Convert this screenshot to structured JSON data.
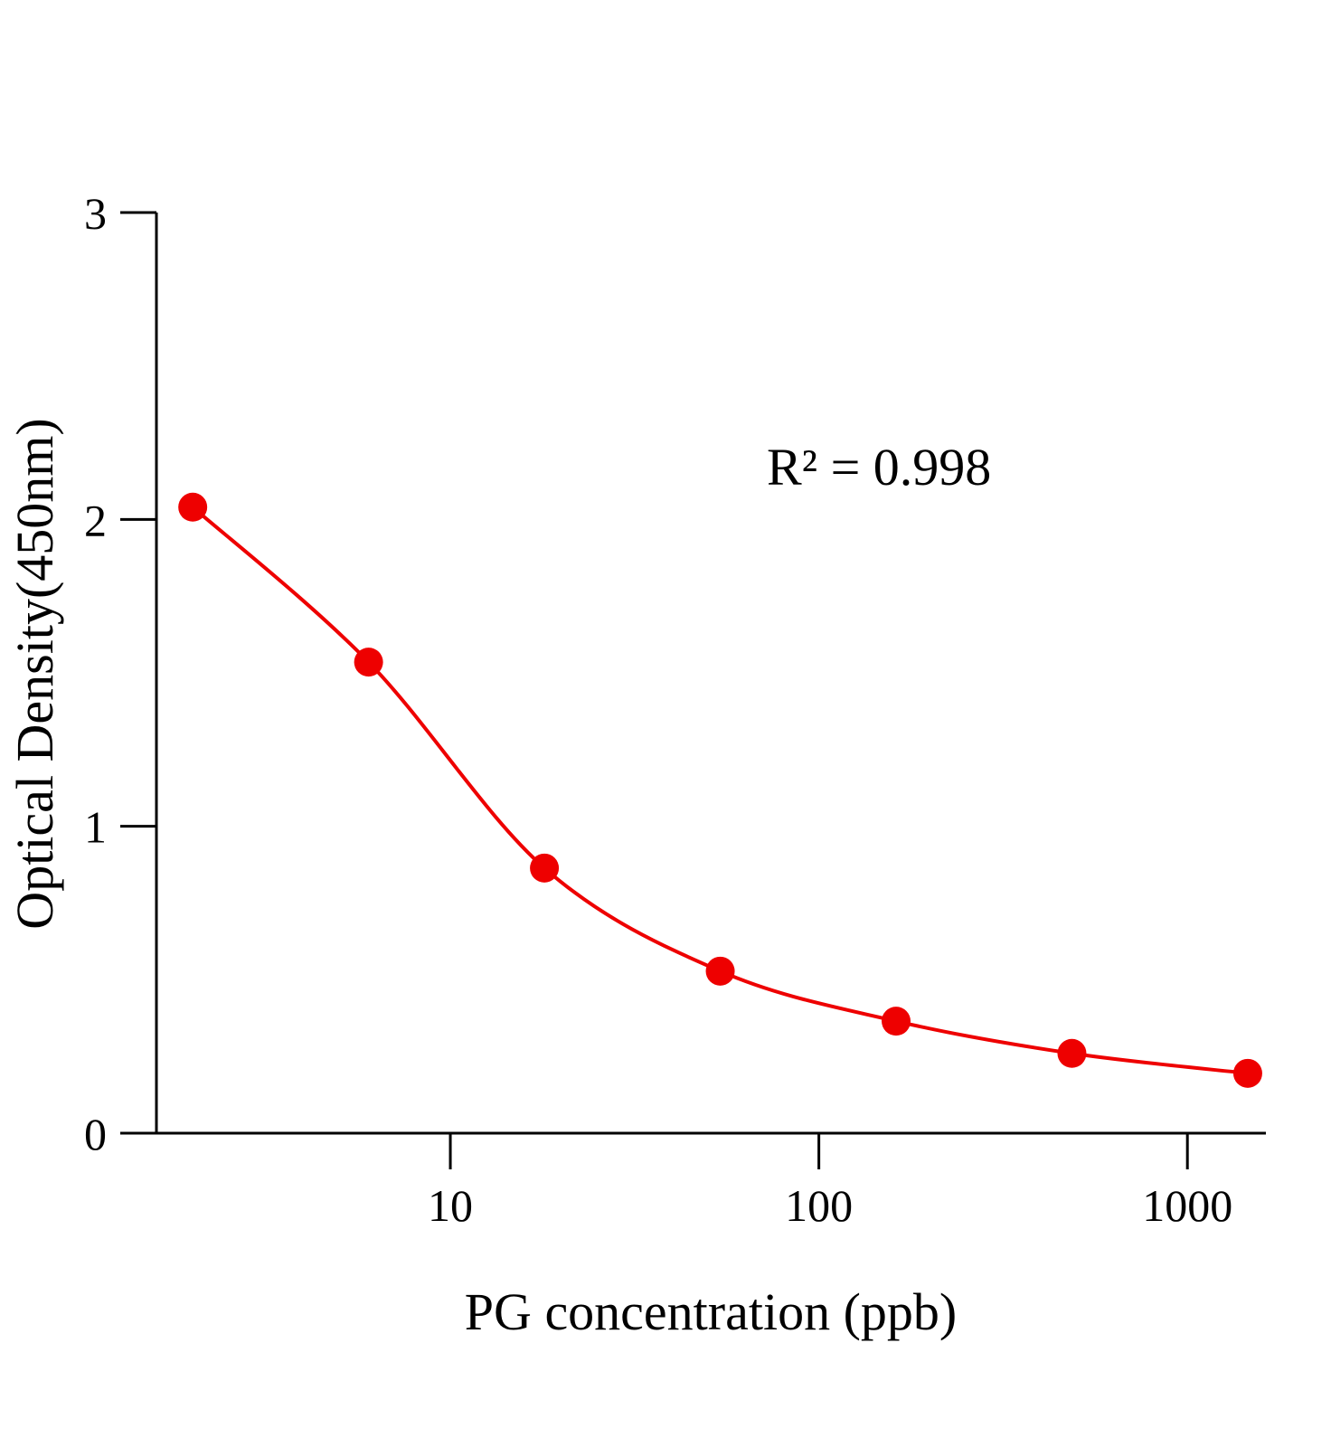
{
  "chart_data": {
    "type": "scatter",
    "title": "",
    "xlabel": "PG concentration (ppb)",
    "ylabel": "Optical Density(450nm)",
    "xscale": "log",
    "xlim": [
      1.594,
      1633
    ],
    "ylim": [
      0,
      3
    ],
    "xticks": [
      10,
      100,
      1000
    ],
    "xtick_labels": [
      "10",
      "100",
      "1000"
    ],
    "yticks": [
      0,
      1,
      2,
      3
    ],
    "ytick_labels": [
      "0",
      "1",
      "2",
      "3"
    ],
    "grid": false,
    "legend": "none",
    "annotation": "R² = 0.998",
    "series": [
      {
        "x": [
          2,
          6,
          18,
          54,
          162,
          486,
          1458
        ],
        "y": [
          2.04,
          1.535,
          0.864,
          0.528,
          0.365,
          0.26,
          0.195
        ],
        "color": "#ee0000",
        "fit_line": true
      }
    ]
  }
}
